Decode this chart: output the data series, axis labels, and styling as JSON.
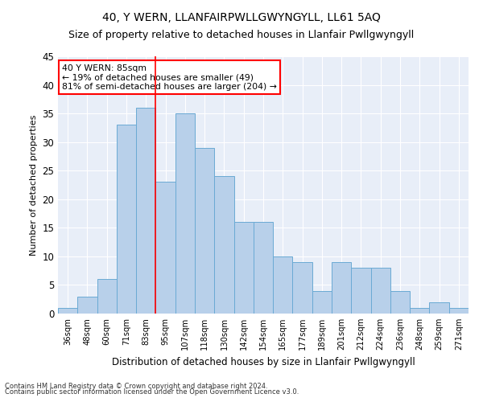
{
  "title": "40, Y WERN, LLANFAIRPWLLGWYNGYLL, LL61 5AQ",
  "subtitle": "Size of property relative to detached houses in Llanfair Pwllgwyngyll",
  "xlabel": "Distribution of detached houses by size in Llanfair Pwllgwyngyll",
  "ylabel": "Number of detached properties",
  "footnote1": "Contains HM Land Registry data © Crown copyright and database right 2024.",
  "footnote2": "Contains public sector information licensed under the Open Government Licence v3.0.",
  "annotation_line1": "40 Y WERN: 85sqm",
  "annotation_line2": "← 19% of detached houses are smaller (49)",
  "annotation_line3": "81% of semi-detached houses are larger (204) →",
  "bins": [
    "36sqm",
    "48sqm",
    "60sqm",
    "71sqm",
    "83sqm",
    "95sqm",
    "107sqm",
    "118sqm",
    "130sqm",
    "142sqm",
    "154sqm",
    "165sqm",
    "177sqm",
    "189sqm",
    "201sqm",
    "212sqm",
    "224sqm",
    "236sqm",
    "248sqm",
    "259sqm",
    "271sqm"
  ],
  "bar_heights": [
    1,
    3,
    6,
    33,
    36,
    23,
    35,
    29,
    24,
    16,
    16,
    10,
    9,
    4,
    9,
    8,
    8,
    4,
    1,
    2,
    1
  ],
  "bar_color": "#b8d0ea",
  "bar_edge_color": "#6aaad4",
  "red_line_x": 4.5,
  "ylim": [
    0,
    45
  ],
  "yticks": [
    0,
    5,
    10,
    15,
    20,
    25,
    30,
    35,
    40,
    45
  ],
  "annotation_box_color": "white",
  "annotation_box_edge": "red",
  "background_color": "#e8eef8",
  "title_fontsize": 10,
  "subtitle_fontsize": 9,
  "grid_color": "white"
}
